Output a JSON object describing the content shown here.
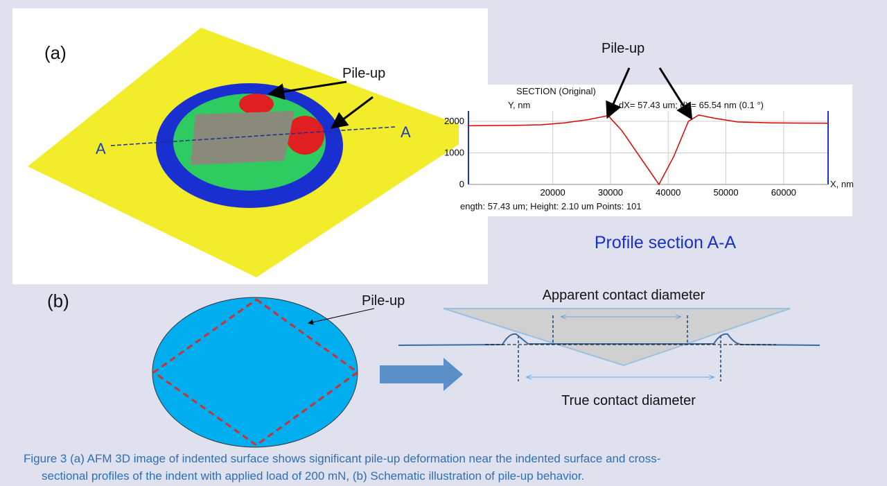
{
  "panel_a": {
    "label": "(a)",
    "pileup_label": "Pile-up",
    "marker_left": "A",
    "marker_right": "A"
  },
  "profile": {
    "type": "line",
    "pileup_label": "Pile-up",
    "header": "SECTION (Original)",
    "y_axis_label": "Y, nm",
    "x_axis_label": "X, nm",
    "readout": "dX= 57.43 um; dY= 65.54 nm (0.1 °)",
    "footer": "ength: 57.43 um;  Height: 2.10 um Points: 101",
    "caption": "Profile section A-A",
    "x": [
      5400,
      13000,
      18000,
      22000,
      26000,
      29600,
      32000,
      35000,
      38400,
      41000,
      43500,
      45300,
      48000,
      52000,
      58000,
      67700
    ],
    "values": [
      1860,
      1870,
      1890,
      1950,
      2050,
      2180,
      1700,
      900,
      0,
      900,
      2000,
      2200,
      2100,
      1980,
      1950,
      1940
    ],
    "color": "#e00000",
    "xlim": [
      5400,
      67700
    ],
    "ylim": [
      0,
      2330
    ],
    "xticks": [
      20000,
      30000,
      40000,
      50000,
      60000
    ],
    "yticks": [
      0,
      1000,
      2000
    ],
    "grid": true
  },
  "panel_b": {
    "label": "(b)",
    "pileup_label": "Pile-up",
    "apparent_label": "Apparent contact diameter",
    "true_label": "True contact diameter"
  },
  "caption": {
    "lines": [
      "Figure 3 (a) AFM 3D image of indented surface shows significant pile-up deformation near the indented surface and cross-",
      "sectional profiles of the indent with applied load of 200 mN, (b) Schematic illustration of pile-up behavior."
    ]
  }
}
